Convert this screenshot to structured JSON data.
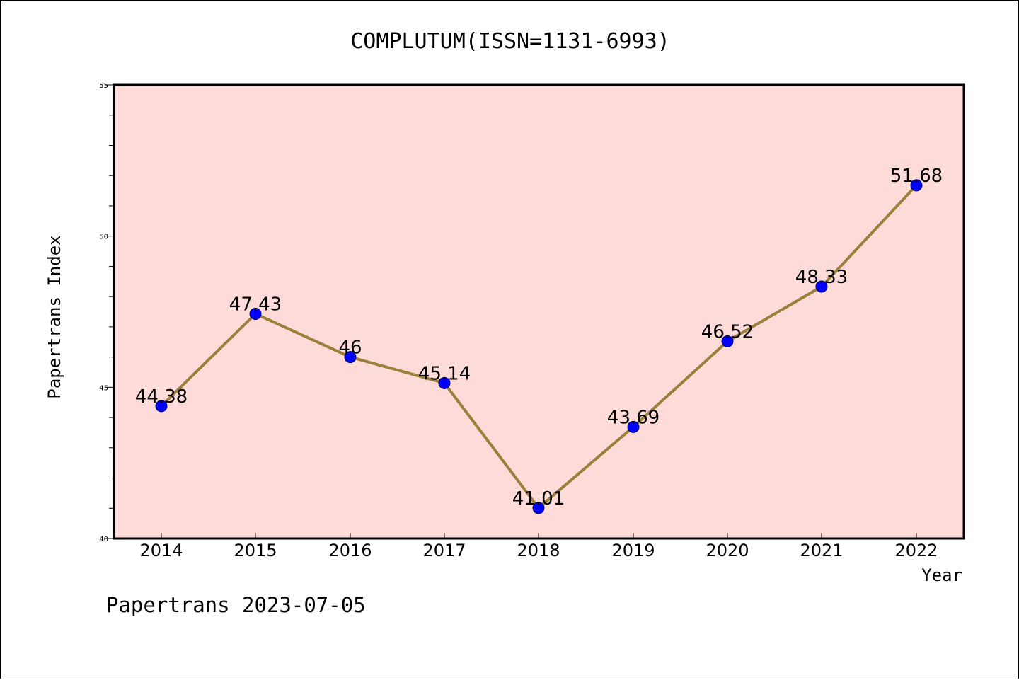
{
  "chart_data": {
    "type": "line",
    "title": "COMPLUTUM(ISSN=1131-6993)",
    "xlabel": "Year",
    "ylabel": "Papertrans Index",
    "categories": [
      "2014",
      "2015",
      "2016",
      "2017",
      "2018",
      "2019",
      "2020",
      "2021",
      "2022"
    ],
    "series": [
      {
        "values": [
          44.38,
          47.43,
          46,
          45.14,
          41.01,
          43.69,
          46.52,
          48.33,
          51.68
        ],
        "labels": [
          "44.38",
          "47.43",
          "46",
          "45.14",
          "41.01",
          "43.69",
          "46.52",
          "48.33",
          "51.68"
        ],
        "line_color": "#9b7f3a",
        "marker_color": "#0000ff"
      }
    ],
    "ylim": [
      40,
      55
    ],
    "yticks": [
      "40",
      "45",
      "50",
      "55"
    ],
    "minor_tick_step": 1,
    "grid": false,
    "legend": "none",
    "plot_background": "#fddbd8"
  },
  "footer": {
    "text": "Papertrans 2023-07-05"
  }
}
